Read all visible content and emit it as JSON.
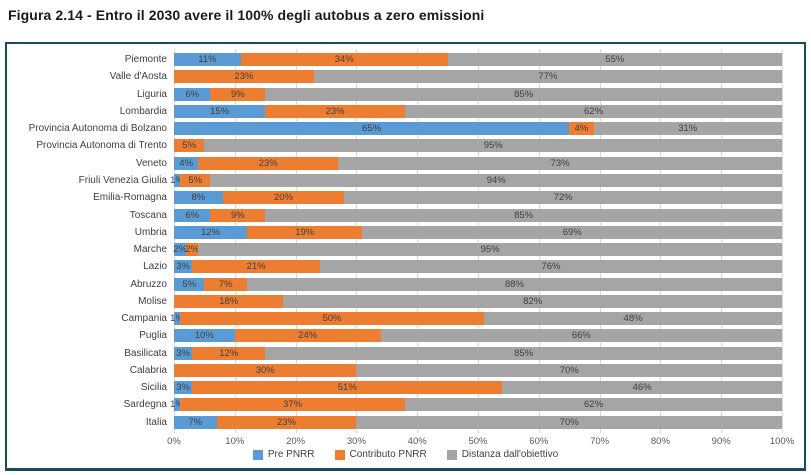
{
  "title": "Figura 2.14 - Entro il 2030 avere il 100% degli autobus a zero emissioni",
  "chart_data": {
    "type": "bar",
    "orientation": "horizontal-stacked",
    "title": "Figura 2.14 - Entro il 2030 avere il 100% degli autobus a zero emissioni",
    "categories": [
      "Piemonte",
      "Valle d'Aosta",
      "Liguria",
      "Lombardia",
      "Provincia Autonoma di Bolzano",
      "Provincia Autonoma di Trento",
      "Veneto",
      "Friuli Venezia Giulia",
      "Emilia-Romagna",
      "Toscana",
      "Umbria",
      "Marche",
      "Lazio",
      "Abruzzo",
      "Molise",
      "Campania",
      "Puglia",
      "Basilicata",
      "Calabria",
      "Sicilia",
      "Sardegna",
      "Italia"
    ],
    "series": [
      {
        "name": "Pre PNRR",
        "color": "#5b9bd5",
        "values": [
          11,
          0,
          6,
          15,
          65,
          0,
          4,
          1,
          8,
          6,
          12,
          2,
          3,
          5,
          0,
          1,
          10,
          3,
          0,
          3,
          1,
          7
        ]
      },
      {
        "name": "Contributo PNRR",
        "color": "#ed7d31",
        "values": [
          34,
          23,
          9,
          23,
          4,
          5,
          23,
          5,
          20,
          9,
          19,
          2,
          21,
          7,
          18,
          50,
          24,
          12,
          30,
          51,
          37,
          23
        ]
      },
      {
        "name": "Distanza dall'obiettivo",
        "color": "#a5a5a5",
        "values": [
          55,
          77,
          85,
          62,
          31,
          95,
          73,
          94,
          72,
          85,
          69,
          95,
          76,
          88,
          82,
          48,
          66,
          85,
          70,
          46,
          62,
          70
        ]
      }
    ],
    "x_ticks": [
      "0%",
      "10%",
      "20%",
      "30%",
      "40%",
      "50%",
      "60%",
      "70%",
      "80%",
      "90%",
      "100%"
    ],
    "xlim": [
      0,
      100
    ],
    "value_suffix": "%",
    "grid": true,
    "legend_position": "bottom"
  },
  "colors": {
    "frame_border": "#1b4a5e",
    "gridline": "#d9d9d9",
    "data_label": "#404040",
    "axis_text": "#595959",
    "background": "#ffffff"
  }
}
